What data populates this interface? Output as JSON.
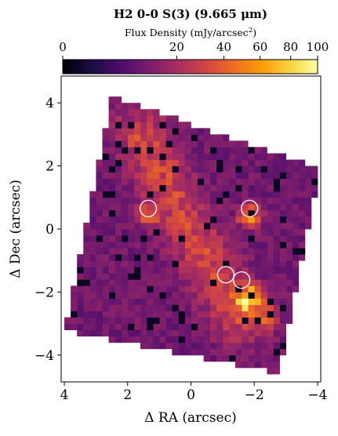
{
  "chart_data": {
    "type": "heatmap",
    "title": "H2 0-0 S(3) (9.665 μm)",
    "colorbar": {
      "label": "Flux Density (mJy/arcsec²)",
      "label_text": "Flux Density (mJy/arcsec",
      "label_sup": "2",
      "label_close": ")",
      "scale": "power (approx. sqrt)",
      "range": [
        0,
        100
      ],
      "ticks": [
        0,
        20,
        40,
        60,
        80,
        100
      ],
      "tick_labels": [
        "0",
        "20",
        "40",
        "60",
        "80",
        "100"
      ],
      "colormap": "inferno-like",
      "colors": [
        "#000004",
        "#1b0c41",
        "#4a0c6b",
        "#781c6d",
        "#a52c60",
        "#cf4446",
        "#ed6925",
        "#fb9b06",
        "#f7d13d",
        "#fcffa4"
      ]
    },
    "xlabel": "Δ RA (arcsec)",
    "ylabel": "Δ Dec (arcsec)",
    "xlim": [
      4.1,
      -4.1
    ],
    "ylim": [
      -4.85,
      4.85
    ],
    "xticks": [
      -4,
      -2,
      0,
      2,
      4
    ],
    "xtick_labels": [
      "−4",
      "−2",
      "0",
      "2",
      "4"
    ],
    "yticks": [
      -4,
      -2,
      0,
      2,
      4
    ],
    "ytick_labels": [
      "−4",
      "−2",
      "0",
      "2",
      "4"
    ],
    "field_of_view_corners": [
      [
        -4.1,
        1.9
      ],
      [
        -2.8,
        -4.6
      ],
      [
        4.0,
        -3.2
      ],
      [
        2.5,
        4.2
      ]
    ],
    "ridge": {
      "description": "diagonal band of enhanced emission",
      "from": [
        1.6,
        3.0
      ],
      "to": [
        -1.5,
        -2.8
      ],
      "peak_flux": 30
    },
    "background_flux": 10,
    "hotspots": [
      {
        "ra": -1.95,
        "dec": -2.15,
        "flux": 60
      },
      {
        "ra": -1.7,
        "dec": -2.3,
        "flux": 50
      },
      {
        "ra": -1.85,
        "dec": 0.4,
        "flux": 45
      },
      {
        "ra": -2.4,
        "dec": -2.8,
        "flux": 35
      },
      {
        "ra": 1.35,
        "dec": 0.45,
        "flux": 30
      }
    ],
    "markers": [
      {
        "ra": 1.35,
        "dec": 0.65
      },
      {
        "ra": -1.85,
        "dec": 0.65
      },
      {
        "ra": -1.1,
        "dec": -1.45
      },
      {
        "ra": -1.6,
        "dec": -1.62
      }
    ],
    "marker_style": "open white circle",
    "grid": false
  }
}
